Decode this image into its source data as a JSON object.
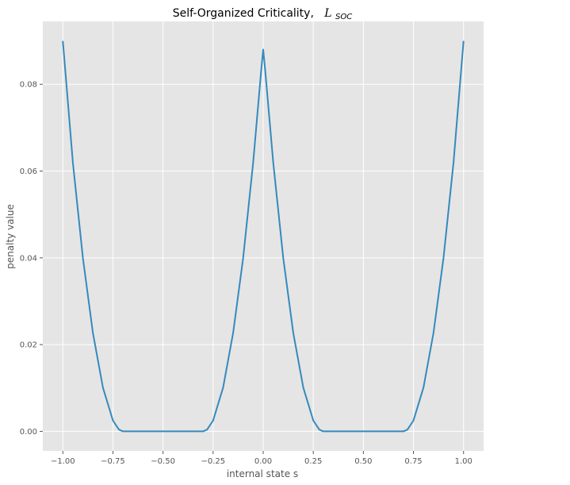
{
  "chart_data": {
    "type": "line",
    "title": "Self-Organized Criticality,",
    "title_symbol_main": "L",
    "title_symbol_sub": "SOC",
    "xlabel": "internal state s",
    "ylabel": "penalty value",
    "xlim": [
      -1.1,
      1.1
    ],
    "ylim": [
      -0.0045,
      0.0945
    ],
    "x_ticks": [
      -1.0,
      -0.75,
      -0.5,
      -0.25,
      0.0,
      0.25,
      0.5,
      0.75,
      1.0
    ],
    "x_tick_labels": [
      "−1.00",
      "−0.75",
      "−0.50",
      "−0.25",
      "0.00",
      "0.25",
      "0.50",
      "0.75",
      "1.00"
    ],
    "y_ticks": [
      0.0,
      0.02,
      0.04,
      0.06,
      0.08
    ],
    "y_tick_labels": [
      "0.00",
      "0.02",
      "0.04",
      "0.06",
      "0.08"
    ],
    "grid": true,
    "legend": "none",
    "style": "ggplot",
    "series": [
      {
        "x": [
          -1.0,
          -0.95,
          -0.9,
          -0.85,
          -0.8,
          -0.75,
          -0.72,
          -0.7,
          -0.65,
          -0.6,
          -0.55,
          -0.5,
          -0.45,
          -0.4,
          -0.35,
          -0.3,
          -0.28,
          -0.25,
          -0.2,
          -0.15,
          -0.1,
          -0.05,
          -0.01,
          0.0,
          0.01,
          0.05,
          0.1,
          0.15,
          0.2,
          0.25,
          0.28,
          0.3,
          0.35,
          0.4,
          0.45,
          0.5,
          0.55,
          0.6,
          0.65,
          0.7,
          0.72,
          0.75,
          0.8,
          0.85,
          0.9,
          0.95,
          1.0
        ],
        "y": [
          0.09,
          0.062,
          0.04,
          0.0227,
          0.0101,
          0.0025,
          0.0004,
          0.0,
          0.0,
          0.0,
          0.0,
          0.0,
          0.0,
          0.0,
          0.0,
          0.0,
          0.0004,
          0.0025,
          0.0101,
          0.0227,
          0.04,
          0.062,
          0.0832,
          0.088,
          0.0832,
          0.062,
          0.04,
          0.0227,
          0.0101,
          0.0025,
          0.0004,
          0.0,
          0.0,
          0.0,
          0.0,
          0.0,
          0.0,
          0.0,
          0.0,
          0.0,
          0.0004,
          0.0025,
          0.0101,
          0.0227,
          0.04,
          0.062,
          0.09
        ],
        "color": "#348ABD"
      }
    ]
  },
  "colors": {
    "plot_bg": "#E5E5E5",
    "grid": "#FFFFFF",
    "tick": "#555555",
    "line": "#348ABD"
  }
}
